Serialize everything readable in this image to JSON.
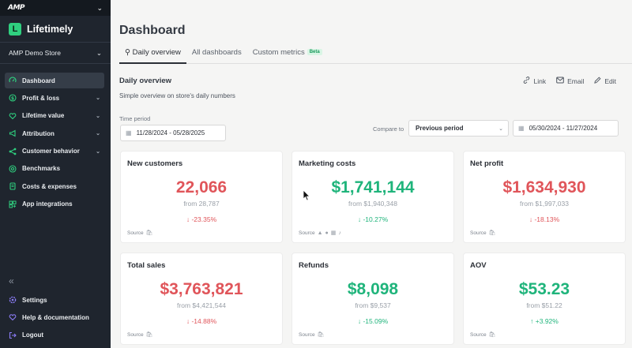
{
  "sidebar": {
    "org_logo": "AMP",
    "brand": "Lifetimely",
    "brand_logo_letter": "L",
    "store": "AMP Demo Store",
    "nav": [
      {
        "label": "Dashboard",
        "icon": "gauge-icon",
        "active": true
      },
      {
        "label": "Profit & loss",
        "icon": "dollar-icon",
        "chevron": true
      },
      {
        "label": "Lifetime value",
        "icon": "heart-icon",
        "chevron": true
      },
      {
        "label": "Attribution",
        "icon": "megaphone-icon",
        "chevron": true
      },
      {
        "label": "Customer behavior",
        "icon": "flow-icon",
        "chevron": true
      },
      {
        "label": "Benchmarks",
        "icon": "target-icon"
      },
      {
        "label": "Costs & expenses",
        "icon": "receipt-icon"
      },
      {
        "label": "App integrations",
        "icon": "apps-icon"
      }
    ],
    "bottom": [
      {
        "label": "Settings",
        "icon": "gear-icon"
      },
      {
        "label": "Help & documentation",
        "icon": "heart-help-icon"
      },
      {
        "label": "Logout",
        "icon": "logout-icon"
      }
    ]
  },
  "header": {
    "title": "Dashboard",
    "tabs": [
      {
        "label": "Daily overview",
        "active": true
      },
      {
        "label": "All dashboards"
      },
      {
        "label": "Custom metrics",
        "badge": "Beta"
      }
    ]
  },
  "overview": {
    "title": "Daily overview",
    "subtitle": "Simple overview on store's daily numbers",
    "actions": {
      "link": "Link",
      "email": "Email",
      "edit": "Edit"
    },
    "time_period_label": "Time period",
    "time_period": "11/28/2024 - 05/28/2025",
    "compare_label": "Compare to",
    "compare_option": "Previous period",
    "compare_range": "05/30/2024 - 11/27/2024"
  },
  "colors": {
    "negative": "#e0555a",
    "positive": "#1fb47b",
    "accent": "#2fcf7f"
  },
  "cards": [
    {
      "title": "New customers",
      "value": "22,066",
      "from": "from 28,787",
      "change": "↓ -23.35%",
      "tone": "red",
      "source": "Source"
    },
    {
      "title": "Marketing costs",
      "value": "$1,741,144",
      "from": "from $1,940,348",
      "change": "↓ -10.27%",
      "tone": "green",
      "source": "Source"
    },
    {
      "title": "Net profit",
      "value": "$1,634,930",
      "from": "from $1,997,033",
      "change": "↓ -18.13%",
      "tone": "red",
      "source": "Source"
    },
    {
      "title": "Total sales",
      "value": "$3,763,821",
      "from": "from $4,421,544",
      "change": "↓ -14.88%",
      "tone": "red",
      "source": "Source"
    },
    {
      "title": "Refunds",
      "value": "$8,098",
      "from": "from $9,537",
      "change": "↓ -15.09%",
      "tone": "green",
      "source": "Source"
    },
    {
      "title": "AOV",
      "value": "$53.23",
      "from": "from $51.22",
      "change": "↑ +3.92%",
      "tone": "green",
      "source": "Source"
    }
  ]
}
